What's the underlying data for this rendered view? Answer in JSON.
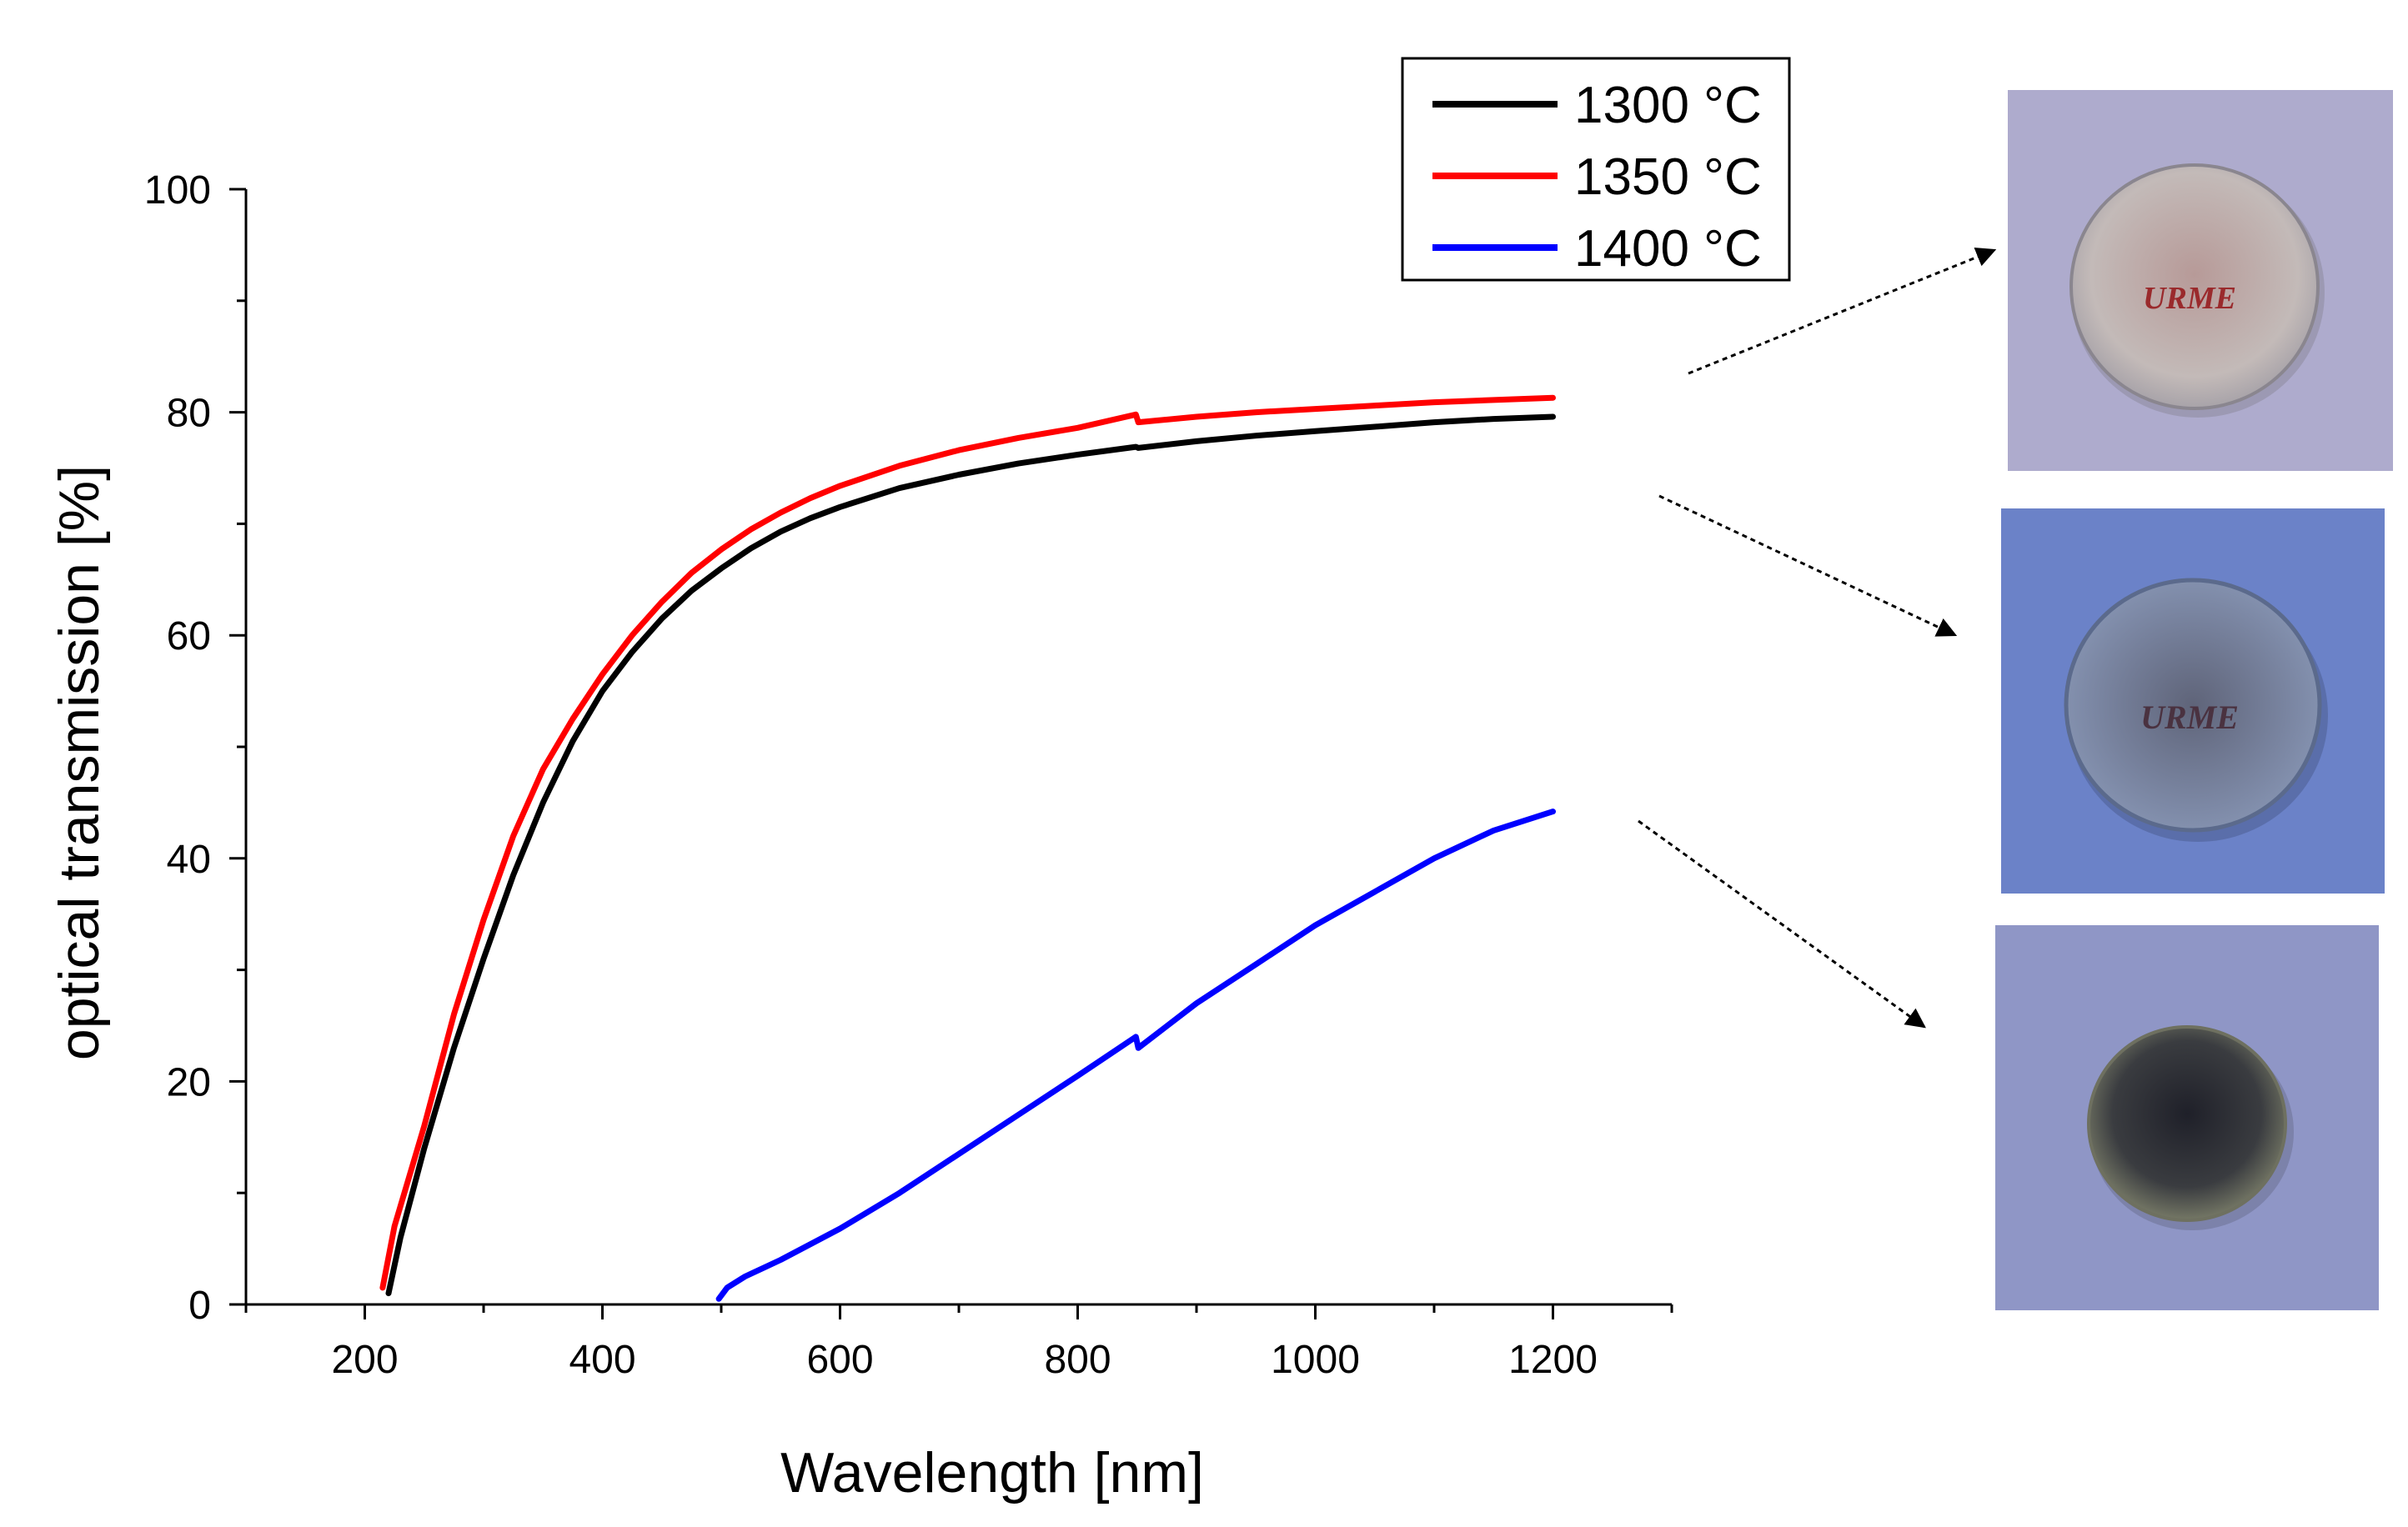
{
  "chart_data": {
    "type": "line",
    "xlabel": "Wavelength [nm]",
    "ylabel": "optical transmission  [%]",
    "xlim": [
      100,
      1300
    ],
    "ylim": [
      0,
      100
    ],
    "x_ticks": [
      200,
      400,
      600,
      800,
      1000,
      1200
    ],
    "y_ticks": [
      0,
      20,
      40,
      60,
      80,
      100
    ],
    "x_tick_labels": [
      "200",
      "400",
      "600",
      "800",
      "1000",
      "1200"
    ],
    "y_tick_labels": [
      "0",
      "20",
      "40",
      "60",
      "80",
      "100"
    ],
    "legend_position": "top-right",
    "series": [
      {
        "name": "1300 °C",
        "color": "#000000",
        "x": [
          220,
          230,
          250,
          275,
          300,
          325,
          350,
          375,
          400,
          425,
          450,
          475,
          500,
          525,
          550,
          575,
          600,
          650,
          700,
          750,
          800,
          849,
          851,
          900,
          950,
          1000,
          1050,
          1100,
          1150,
          1200
        ],
        "y": [
          1,
          6,
          14,
          23,
          31,
          38.5,
          45,
          50.5,
          55,
          58.5,
          61.5,
          64,
          66,
          67.8,
          69.3,
          70.5,
          71.5,
          73.2,
          74.4,
          75.4,
          76.2,
          76.9,
          76.8,
          77.4,
          77.9,
          78.3,
          78.7,
          79.1,
          79.4,
          79.6
        ]
      },
      {
        "name": "1350 °C",
        "color": "#ff0000",
        "x": [
          215,
          225,
          250,
          275,
          300,
          325,
          350,
          375,
          400,
          425,
          450,
          475,
          500,
          525,
          550,
          575,
          600,
          650,
          700,
          750,
          800,
          849,
          851,
          900,
          950,
          1000,
          1050,
          1100,
          1150,
          1200
        ],
        "y": [
          1.5,
          7,
          16,
          26,
          34.5,
          42,
          48,
          52.5,
          56.5,
          60,
          63,
          65.6,
          67.7,
          69.5,
          71,
          72.3,
          73.4,
          75.2,
          76.6,
          77.7,
          78.6,
          79.8,
          79.1,
          79.6,
          80,
          80.3,
          80.6,
          80.9,
          81.1,
          81.3
        ]
      },
      {
        "name": "1400 °C",
        "color": "#0000ff",
        "x": [
          498,
          505,
          520,
          550,
          600,
          650,
          700,
          750,
          800,
          849,
          851,
          900,
          950,
          1000,
          1050,
          1100,
          1150,
          1200
        ],
        "y": [
          0.5,
          1.5,
          2.5,
          4,
          6.8,
          10,
          13.5,
          17,
          20.5,
          24,
          23,
          27,
          30.5,
          34,
          37,
          40,
          42.5,
          44.2
        ]
      }
    ]
  },
  "photos": [
    {
      "name": "sample-1300",
      "label": "URME",
      "bg": "#a7a5c9",
      "disc": "#bfb5b4",
      "label_color": "#9a2a2c"
    },
    {
      "name": "sample-1350",
      "label": "URME",
      "bg": "#6b82c8",
      "disc": "#7a859e",
      "label_color": "#4a3240"
    },
    {
      "name": "sample-1400",
      "bg": "#8f96c6",
      "disc": "#3a3c40"
    }
  ]
}
